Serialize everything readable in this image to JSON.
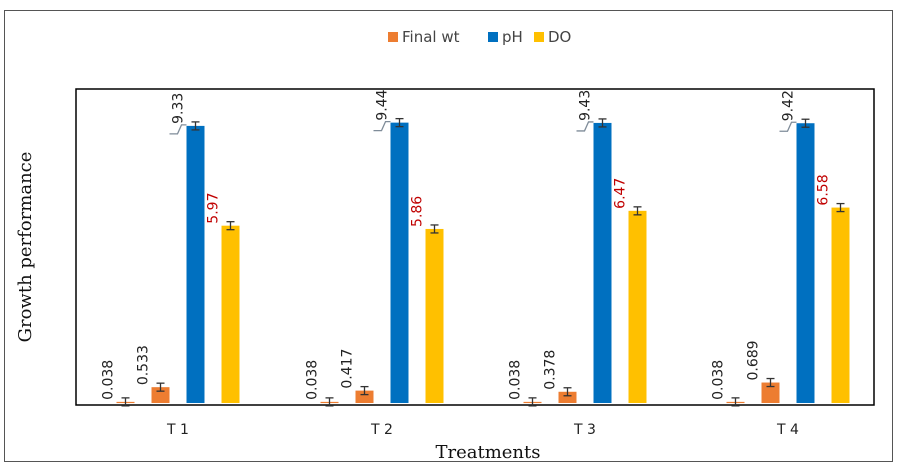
{
  "chart_data": {
    "type": "bar",
    "title": "",
    "xlabel": "Treatments",
    "ylabel": "Growth performance",
    "categories": [
      "T 1",
      "T 2",
      "T 3",
      "T 4"
    ],
    "series": [
      {
        "name": "Final wt",
        "color": "#ED7D31",
        "values": [
          0.038,
          0.038,
          0.038,
          0.038
        ],
        "labels": [
          "0.038",
          "0.038",
          "0.038",
          "0.038"
        ],
        "label_color": "#222222"
      },
      {
        "name": "Final wt",
        "color": "#ED7D31",
        "values": [
          0.533,
          0.417,
          0.378,
          0.689
        ],
        "labels": [
          "0.533",
          "0.417",
          "0.378",
          "0.689"
        ],
        "label_color": "#222222"
      },
      {
        "name": "pH",
        "color": "#0070C0",
        "values": [
          9.33,
          9.44,
          9.43,
          9.42
        ],
        "labels": [
          "9.33",
          "9.44",
          "9.43",
          "9.42"
        ],
        "label_color": "#222222"
      },
      {
        "name": "DO",
        "color": "#FFC000",
        "values": [
          5.97,
          5.86,
          6.47,
          6.58
        ],
        "labels": [
          "5.97",
          "5.86",
          "6.47",
          "6.58"
        ],
        "label_color": "#C00000"
      }
    ],
    "legend": {
      "position": "top",
      "entries": [
        {
          "name": "Final wt",
          "color": "#ED7D31"
        },
        {
          "name": "pH",
          "color": "#0070C0"
        },
        {
          "name": "DO",
          "color": "#FFC000"
        }
      ]
    },
    "ylim": [
      0,
      10
    ],
    "grid": false,
    "error_bars": true
  }
}
